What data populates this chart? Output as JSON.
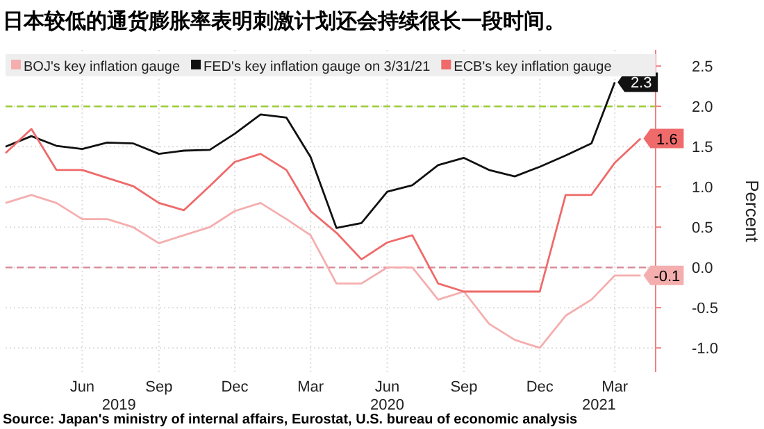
{
  "chart_data": {
    "type": "line",
    "title": "日本较低的通货膨胀率表明刺激计划还会持续很长一段时间。",
    "ylabel": "Percent",
    "x": [
      "2019-03",
      "2019-04",
      "2019-05",
      "2019-06",
      "2019-07",
      "2019-08",
      "2019-09",
      "2019-10",
      "2019-11",
      "2019-12",
      "2020-01",
      "2020-02",
      "2020-03",
      "2020-04",
      "2020-05",
      "2020-06",
      "2020-07",
      "2020-08",
      "2020-09",
      "2020-10",
      "2020-11",
      "2020-12",
      "2021-01",
      "2021-02",
      "2021-03",
      "2021-04"
    ],
    "series": [
      {
        "name": "BOJ's key inflation gauge",
        "color": "#f5aeae",
        "values": [
          0.8,
          0.9,
          0.8,
          0.6,
          0.6,
          0.5,
          0.3,
          0.4,
          0.5,
          0.7,
          0.8,
          0.6,
          0.4,
          -0.2,
          -0.2,
          0.0,
          0.0,
          -0.4,
          -0.3,
          -0.7,
          -0.9,
          -1.0,
          -0.6,
          -0.4,
          -0.1,
          -0.1
        ],
        "value_labels": [
          null,
          null,
          null,
          null,
          null,
          null,
          null,
          null,
          null,
          null,
          null,
          null,
          null,
          null,
          null,
          null,
          null,
          null,
          null,
          null,
          null,
          null,
          null,
          null,
          null,
          "-0.1"
        ]
      },
      {
        "name": "FED's key inflation gauge on 3/31/21",
        "color": "#111111",
        "x": [
          "2019-03",
          "2019-04",
          "2019-05",
          "2019-06",
          "2019-07",
          "2019-08",
          "2019-09",
          "2019-10",
          "2019-11",
          "2019-12",
          "2020-01",
          "2020-02",
          "2020-03",
          "2020-04",
          "2020-05",
          "2020-06",
          "2020-07",
          "2020-08",
          "2020-09",
          "2020-10",
          "2020-11",
          "2020-12",
          "2021-01",
          "2021-02",
          "2021-03"
        ],
        "values": [
          1.5,
          1.63,
          1.51,
          1.47,
          1.55,
          1.54,
          1.41,
          1.45,
          1.46,
          1.66,
          1.9,
          1.86,
          1.37,
          0.49,
          0.55,
          0.94,
          1.02,
          1.27,
          1.36,
          1.21,
          1.13,
          1.25,
          1.39,
          1.54,
          2.3
        ],
        "value_labels": [
          null,
          null,
          null,
          null,
          null,
          null,
          null,
          null,
          null,
          null,
          null,
          null,
          null,
          null,
          null,
          null,
          null,
          null,
          null,
          null,
          null,
          null,
          null,
          null,
          "2.3"
        ]
      },
      {
        "name": "ECB's key inflation gauge",
        "color": "#ef6a6a",
        "values": [
          1.42,
          1.72,
          1.21,
          1.21,
          1.11,
          1.01,
          0.8,
          0.71,
          1.01,
          1.31,
          1.41,
          1.21,
          0.7,
          0.43,
          0.1,
          0.31,
          0.4,
          -0.2,
          -0.3,
          -0.3,
          -0.3,
          -0.3,
          0.9,
          0.9,
          1.3,
          1.6
        ],
        "value_labels": [
          null,
          null,
          null,
          null,
          null,
          null,
          null,
          null,
          null,
          null,
          null,
          null,
          null,
          null,
          null,
          null,
          null,
          null,
          null,
          null,
          null,
          null,
          null,
          null,
          null,
          "1.6"
        ]
      }
    ],
    "xlim": [
      "2019-03",
      "2021-04-19"
    ],
    "xticks": [
      {
        "value": "2019-06",
        "label": "Jun"
      },
      {
        "value": "2019-09",
        "label": "Sep"
      },
      {
        "value": "2019-12",
        "label": "Dec"
      },
      {
        "value": "2020-03",
        "label": "Mar"
      },
      {
        "value": "2020-06",
        "label": "Jun"
      },
      {
        "value": "2020-09",
        "label": "Sep"
      },
      {
        "value": "2020-12",
        "label": "Dec"
      },
      {
        "value": "2021-03",
        "label": "Mar"
      }
    ],
    "x2lim": [
      "2019-03",
      "2021-04-19"
    ],
    "x2ticks": [
      {
        "value": "2019-07-15",
        "label": "2019"
      },
      {
        "value": "2020-06",
        "label": "2020"
      },
      {
        "value": "2021-02-10",
        "label": "2021"
      }
    ],
    "ylim": [
      -1.3,
      2.7
    ],
    "yticks": [
      {
        "value": 2.5,
        "label": "2.5"
      },
      {
        "value": 2,
        "label": "2.0"
      },
      {
        "value": 1.5,
        "label": "1.5"
      },
      {
        "value": 1,
        "label": "1.0"
      },
      {
        "value": 0.5,
        "label": "0.5"
      },
      {
        "value": 0,
        "label": "0.0"
      },
      {
        "value": -0.5,
        "label": "-0.5"
      },
      {
        "value": -1,
        "label": "-1.0"
      }
    ],
    "ref_lines": [
      {
        "axis": "y",
        "value": 2,
        "color": "#9acd32",
        "line_style": "dashed"
      },
      {
        "axis": "y",
        "value": 0,
        "color": "#d98c9a",
        "line_style": "dashed"
      }
    ],
    "grid": true,
    "legend": "top",
    "annotations": [
      "Source: Japan's ministry of internal affairs, Eurostat, U.S. bureau of economic analysis"
    ]
  }
}
